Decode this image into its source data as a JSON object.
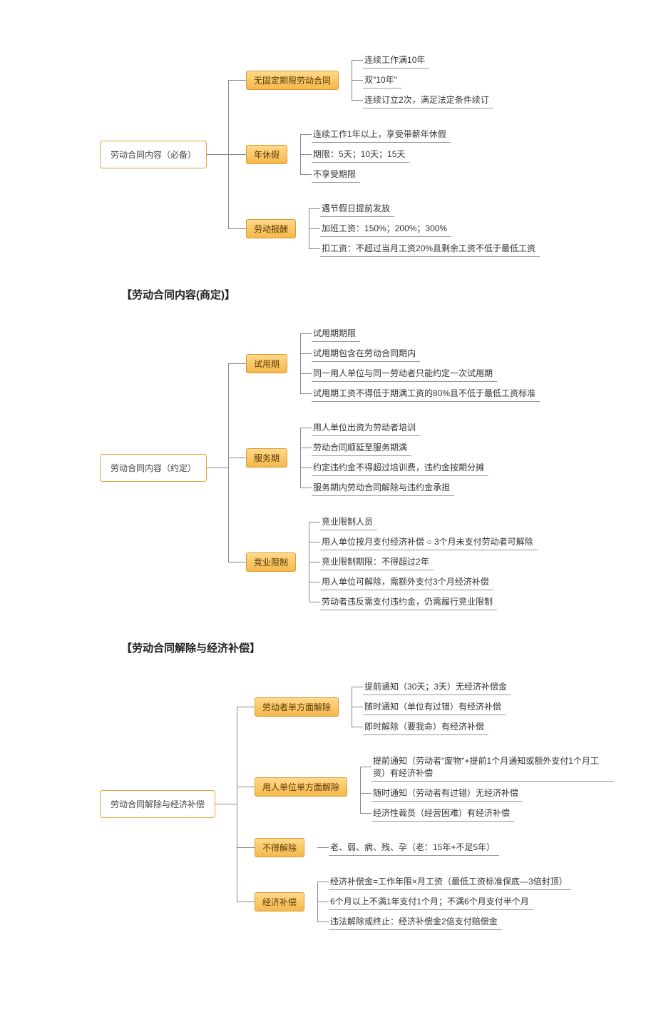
{
  "colors": {
    "root_border": "#e8a33c",
    "branch_bg_top": "#ffd98a",
    "branch_bg_bottom": "#f5b84d",
    "branch_border": "#d89a2e",
    "line": "#888888",
    "leaf_underline": "#999999",
    "text": "#333333",
    "title": "#222222",
    "page_bg": "#ffffff"
  },
  "fontsize": {
    "title": 15,
    "node": 12,
    "leaf": 12
  },
  "maps": [
    {
      "title": null,
      "root": "劳动合同内容（必备）",
      "branches": [
        {
          "label": "无固定期限劳动合同",
          "leaves": [
            "连续工作满10年",
            "双\"10年\"",
            "连续订立2次，满足法定条件续订"
          ]
        },
        {
          "label": "年休假",
          "leaves": [
            "连续工作1年以上，享受带薪年休假",
            "期限：5天；10天；15天",
            "不享受期限"
          ]
        },
        {
          "label": "劳动报酬",
          "leaves": [
            "遇节假日提前发放",
            "加班工资：150%；200%；300%",
            "扣工资：不超过当月工资20%且剩余工资不低于最低工资"
          ]
        }
      ]
    },
    {
      "title": "【劳动合同内容(商定)】",
      "root": "劳动合同内容（约定）",
      "branches": [
        {
          "label": "试用期",
          "leaves": [
            "试用期期限",
            "试用期包含在劳动合同期内",
            "同一用人单位与同一劳动者只能约定一次试用期",
            "试用期工资不得低于期满工资的80%且不低于最低工资标准"
          ]
        },
        {
          "label": "服务期",
          "leaves": [
            "用人单位出资为劳动者培训",
            "劳动合同顺延至服务期满",
            "约定违约金不得超过培训费，违约金按期分摊",
            "服务期内劳动合同解除与违约金承担"
          ]
        },
        {
          "label": "竞业限制",
          "leaves": [
            "竞业限制人员",
            "用人单位按月支付经济补偿  ○  3个月未支付劳动者可解除",
            "竞业限制期限：不得超过2年",
            "用人单位可解除，需额外支付3个月经济补偿",
            "劳动者违反需支付违约金，仍需履行竞业限制"
          ]
        }
      ]
    },
    {
      "title": "【劳动合同解除与经济补偿】",
      "root": "劳动合同解除与经济补偿",
      "branches": [
        {
          "label": "劳动者单方面解除",
          "leaves": [
            "提前通知（30天；3天）无经济补偿金",
            "随时通知（单位有过错）有经济补偿",
            "即时解除（要我命）有经济补偿"
          ]
        },
        {
          "label": "用人单位单方面解除",
          "leaves": [
            "提前通知（劳动者\"废物\"+提前1个月通知或额外支付1个月工资）有经济补偿",
            "随时通知（劳动者有过错）无经济补偿",
            "经济性裁员（经营困难）有经济补偿"
          ]
        },
        {
          "label": "不得解除",
          "leaves": [
            "老、弱、病、残、孕（老：15年+不足5年）"
          ]
        },
        {
          "label": "经济补偿",
          "leaves": [
            "经济补偿金=工作年限×月工资（最低工资标准保底---3倍封顶）",
            "6个月以上不满1年支付1个月；不满6个月支付半个月",
            "违法解除或终止：经济补偿金2倍支付赔偿金"
          ]
        }
      ]
    }
  ]
}
